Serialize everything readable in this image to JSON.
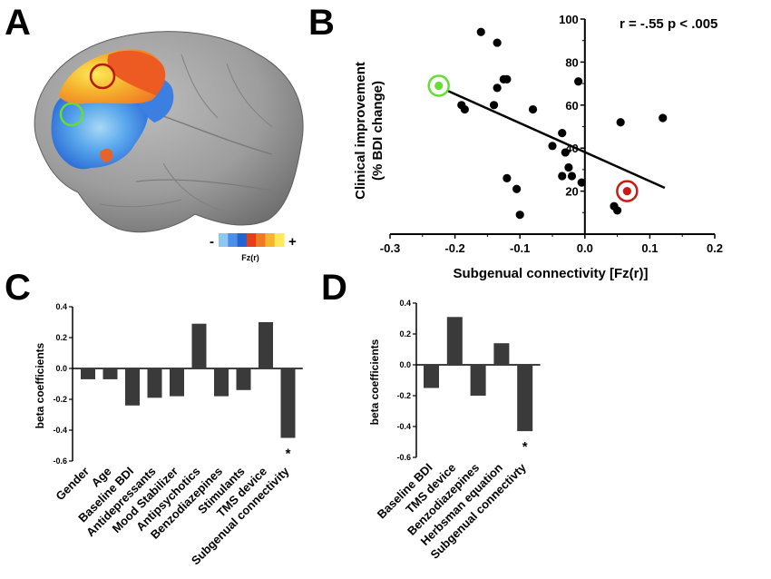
{
  "panel_labels": {
    "a": "A",
    "b": "B",
    "c": "C",
    "d": "D"
  },
  "colors": {
    "accent_green": "#66dd33",
    "accent_red": "#cc1a12",
    "bar": "#3a3a3a"
  },
  "panel_a": {
    "colorbar": {
      "minus": "-",
      "plus": "+",
      "label": "Fz(r)",
      "colors": [
        "#8ec8f0",
        "#4c8fe8",
        "#2563d4",
        "#e63d1a",
        "#f07a24",
        "#f5b52e",
        "#ffe95a"
      ]
    }
  },
  "chart_data": [
    {
      "type": "scatter",
      "panel": "B",
      "xlabel": "Subgenual connectivity [Fz(r)]",
      "ylabel": [
        "Clinical improvement",
        "(% BDI change)"
      ],
      "xlim": [
        -0.3,
        0.2
      ],
      "ylim": [
        0,
        100
      ],
      "xticks": [
        "-0.3",
        "-0.2",
        "-0.1",
        "0.0",
        "0.1",
        "0.2"
      ],
      "yticks": [
        "20",
        "40",
        "60",
        "80",
        "100"
      ],
      "annotation": "r = -.55 p < .005",
      "points": [
        {
          "x": -0.16,
          "y": 94
        },
        {
          "x": -0.135,
          "y": 89
        },
        {
          "x": -0.125,
          "y": 72
        },
        {
          "x": -0.12,
          "y": 72
        },
        {
          "x": -0.01,
          "y": 71
        },
        {
          "x": -0.225,
          "y": 69
        },
        {
          "x": -0.135,
          "y": 68
        },
        {
          "x": -0.19,
          "y": 60
        },
        {
          "x": -0.185,
          "y": 58
        },
        {
          "x": -0.14,
          "y": 60
        },
        {
          "x": -0.08,
          "y": 58
        },
        {
          "x": 0.055,
          "y": 52
        },
        {
          "x": 0.12,
          "y": 54
        },
        {
          "x": -0.035,
          "y": 47
        },
        {
          "x": -0.05,
          "y": 41
        },
        {
          "x": -0.03,
          "y": 38
        },
        {
          "x": -0.025,
          "y": 31
        },
        {
          "x": -0.035,
          "y": 27
        },
        {
          "x": -0.02,
          "y": 27
        },
        {
          "x": -0.005,
          "y": 24
        },
        {
          "x": -0.12,
          "y": 26
        },
        {
          "x": -0.105,
          "y": 21
        },
        {
          "x": 0.065,
          "y": 20
        },
        {
          "x": 0.045,
          "y": 13
        },
        {
          "x": 0.05,
          "y": 11
        },
        {
          "x": -0.1,
          "y": 9
        }
      ],
      "highlight": [
        {
          "x": -0.225,
          "y": 69,
          "color": "green"
        },
        {
          "x": 0.065,
          "y": 20,
          "color": "red"
        }
      ],
      "fit": {
        "x": [
          -0.225,
          0.123
        ],
        "y": [
          68.5,
          21.5
        ]
      }
    },
    {
      "type": "bar",
      "panel": "C",
      "ylabel": "beta coefficients",
      "ylim": [
        -0.6,
        0.4
      ],
      "yticks": [
        "0.4",
        "0.2",
        "0.0",
        "-0.2",
        "-0.4",
        "-0.6"
      ],
      "categories": [
        "Gender",
        "Age",
        "Baseline BDI",
        "Antidepressants",
        "Mood Stabilizer",
        "Antipsychotics",
        "Benzodiazepines",
        "Stimulants",
        "TMS device",
        "Subgenual connectivity"
      ],
      "values": [
        -0.07,
        -0.07,
        -0.24,
        -0.19,
        -0.18,
        0.29,
        -0.18,
        -0.14,
        0.3,
        -0.45
      ],
      "significance": [
        "",
        "",
        "",
        "",
        "",
        "",
        "",
        "",
        "",
        "*"
      ]
    },
    {
      "type": "bar",
      "panel": "D",
      "ylabel": "beta coefficients",
      "ylim": [
        -0.6,
        0.4
      ],
      "yticks": [
        "0.4",
        "0.2",
        "0.0",
        "-0.2",
        "-0.4",
        "-0.6"
      ],
      "categories": [
        "Baseline BDI",
        "TMS device",
        "Benzodiazepines",
        "Herbsman equation",
        "Subgenual connectivty"
      ],
      "values": [
        -0.15,
        0.31,
        -0.2,
        0.14,
        -0.43
      ],
      "significance": [
        "",
        "",
        "",
        "",
        "*"
      ]
    }
  ]
}
